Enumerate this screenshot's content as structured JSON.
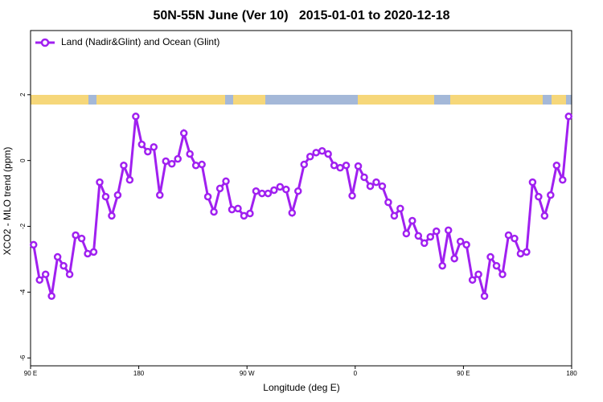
{
  "chart_data": {
    "type": "line",
    "title": "50N-55N June (Ver 10)   2015-01-01 to 2020-12-18",
    "x_label": "Longitude (deg E)",
    "y_label": "XCO2 - MLO trend (ppm)",
    "xlim": [
      90,
      540
    ],
    "ylim": [
      -6.24,
      3.95
    ],
    "xticks": [
      {
        "value": 90,
        "label": "90 E"
      },
      180,
      {
        "value": 270,
        "label": "90 W"
      },
      {
        "value": 360,
        "label": "0"
      },
      {
        "value": 450,
        "label": "90 E"
      },
      {
        "value": 540,
        "label": "180"
      }
    ],
    "yticks": [
      -6,
      -4,
      -2,
      0,
      2
    ],
    "legend": "top-left",
    "x": [
      92.5,
      97.5,
      102.5,
      107.5,
      112.5,
      117.5,
      122.5,
      127.5,
      132.5,
      137.5,
      142.5,
      147.5,
      152.5,
      157.5,
      162.5,
      167.5,
      172.5,
      177.5,
      182.5,
      187.5,
      192.5,
      197.5,
      202.5,
      207.5,
      212.5,
      217.5,
      222.5,
      227.5,
      232.5,
      237.5,
      242.5,
      247.5,
      252.5,
      257.5,
      262.5,
      267.5,
      272.5,
      277.5,
      282.5,
      287.5,
      292.5,
      297.5,
      302.5,
      307.5,
      312.5,
      317.5,
      322.5,
      327.5,
      332.5,
      337.5,
      342.5,
      347.5,
      352.5,
      357.5,
      362.5,
      367.5,
      372.5,
      377.5,
      382.5,
      387.5,
      392.5,
      397.5,
      402.5,
      407.5,
      412.5,
      417.5,
      422.5,
      427.5,
      432.5,
      437.5,
      442.5,
      447.5,
      452.5,
      457.5,
      462.5,
      467.5,
      472.5,
      477.5,
      482.5,
      487.5,
      492.5,
      497.5,
      502.5,
      507.5,
      512.5,
      517.5,
      522.5,
      527.5,
      532.5,
      537.5
    ],
    "series": [
      {
        "name": "Land (Nadir&Glint) and Ocean (Glint)",
        "color": "#a020f0",
        "values": [
          -2.56,
          -3.63,
          -3.46,
          -4.12,
          -2.93,
          -3.2,
          -3.46,
          -2.27,
          -2.37,
          -2.83,
          -2.78,
          -0.66,
          -1.1,
          -1.68,
          -1.05,
          -0.15,
          -0.59,
          1.34,
          0.49,
          0.27,
          0.41,
          -1.05,
          -0.02,
          -0.1,
          0.05,
          0.83,
          0.2,
          -0.15,
          -0.12,
          -1.1,
          -1.56,
          -0.85,
          -0.63,
          -1.49,
          -1.46,
          -1.68,
          -1.61,
          -0.93,
          -1.0,
          -1.0,
          -0.9,
          -0.8,
          -0.88,
          -1.59,
          -0.93,
          -0.12,
          0.12,
          0.24,
          0.29,
          0.2,
          -0.15,
          -0.22,
          -0.15,
          -1.07,
          -0.17,
          -0.51,
          -0.78,
          -0.66,
          -0.78,
          -1.27,
          -1.68,
          -1.46,
          -2.22,
          -1.83,
          -2.29,
          -2.51,
          -2.32,
          -2.15,
          -3.2,
          -2.12,
          -2.98,
          -2.46,
          -2.56,
          -3.63,
          -3.46,
          -4.12,
          -2.93,
          -3.2,
          -3.46,
          -2.27,
          -2.37,
          -2.83,
          -2.78,
          -0.66,
          -1.1,
          -1.68,
          -1.05,
          -0.15,
          -0.59,
          1.34
        ]
      }
    ]
  }
}
